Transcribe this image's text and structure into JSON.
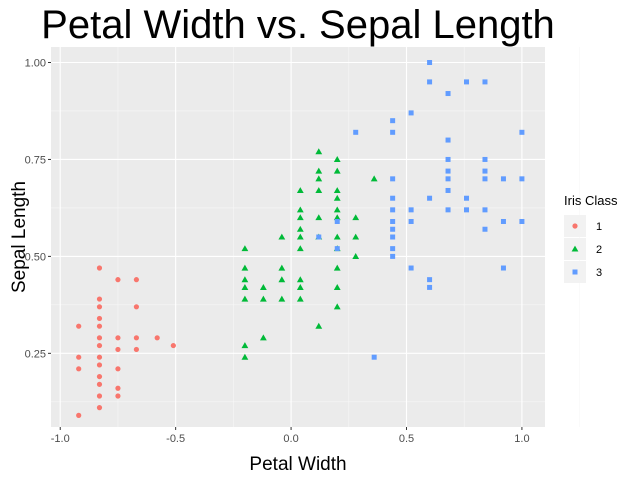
{
  "chart_data": {
    "type": "scatter",
    "title": "Petal Width  vs.  Sepal Length",
    "xlabel": "Petal Width",
    "ylabel": "Sepal Length",
    "xlim": [
      -1.04,
      1.1
    ],
    "ylim": [
      0.06,
      1.04
    ],
    "x_ticks": [
      -1.0,
      -0.5,
      0.0,
      0.5,
      1.0
    ],
    "x_tick_labels": [
      "-1.0",
      "-0.5",
      "0.0",
      "0.5",
      "1.0"
    ],
    "y_ticks": [
      0.25,
      0.5,
      0.75,
      1.0
    ],
    "y_tick_labels": [
      "0.25",
      "0.50",
      "0.75",
      "1.00"
    ],
    "grid": true,
    "panel_background": "#ebebeb",
    "legend": {
      "title": "Iris Class",
      "position": "right"
    },
    "series": [
      {
        "name": "1",
        "color": "#f8766d",
        "shape": "circle",
        "points": [
          [
            -0.92,
            0.09
          ],
          [
            -0.92,
            0.21
          ],
          [
            -0.92,
            0.24
          ],
          [
            -0.92,
            0.32
          ],
          [
            -0.83,
            0.11
          ],
          [
            -0.83,
            0.14
          ],
          [
            -0.83,
            0.17
          ],
          [
            -0.83,
            0.19
          ],
          [
            -0.83,
            0.22
          ],
          [
            -0.83,
            0.24
          ],
          [
            -0.83,
            0.27
          ],
          [
            -0.83,
            0.29
          ],
          [
            -0.83,
            0.32
          ],
          [
            -0.83,
            0.34
          ],
          [
            -0.83,
            0.37
          ],
          [
            -0.83,
            0.39
          ],
          [
            -0.83,
            0.47
          ],
          [
            -0.75,
            0.14
          ],
          [
            -0.75,
            0.16
          ],
          [
            -0.75,
            0.21
          ],
          [
            -0.75,
            0.26
          ],
          [
            -0.75,
            0.29
          ],
          [
            -0.75,
            0.44
          ],
          [
            -0.67,
            0.26
          ],
          [
            -0.67,
            0.29
          ],
          [
            -0.67,
            0.37
          ],
          [
            -0.67,
            0.44
          ],
          [
            -0.58,
            0.29
          ],
          [
            -0.51,
            0.27
          ]
        ]
      },
      {
        "name": "2",
        "color": "#00ba38",
        "shape": "triangle",
        "points": [
          [
            -0.2,
            0.24
          ],
          [
            -0.2,
            0.27
          ],
          [
            -0.2,
            0.39
          ],
          [
            -0.2,
            0.42
          ],
          [
            -0.2,
            0.44
          ],
          [
            -0.2,
            0.47
          ],
          [
            -0.2,
            0.52
          ],
          [
            -0.12,
            0.29
          ],
          [
            -0.12,
            0.39
          ],
          [
            -0.12,
            0.42
          ],
          [
            -0.04,
            0.39
          ],
          [
            -0.04,
            0.44
          ],
          [
            -0.04,
            0.47
          ],
          [
            -0.04,
            0.55
          ],
          [
            0.04,
            0.39
          ],
          [
            0.04,
            0.42
          ],
          [
            0.04,
            0.44
          ],
          [
            0.04,
            0.52
          ],
          [
            0.04,
            0.55
          ],
          [
            0.04,
            0.57
          ],
          [
            0.04,
            0.6
          ],
          [
            0.04,
            0.62
          ],
          [
            0.04,
            0.67
          ],
          [
            0.12,
            0.32
          ],
          [
            0.12,
            0.55
          ],
          [
            0.12,
            0.6
          ],
          [
            0.12,
            0.67
          ],
          [
            0.12,
            0.7
          ],
          [
            0.12,
            0.72
          ],
          [
            0.12,
            0.77
          ],
          [
            0.2,
            0.37
          ],
          [
            0.2,
            0.42
          ],
          [
            0.2,
            0.47
          ],
          [
            0.2,
            0.52
          ],
          [
            0.2,
            0.55
          ],
          [
            0.2,
            0.6
          ],
          [
            0.2,
            0.62
          ],
          [
            0.2,
            0.65
          ],
          [
            0.2,
            0.67
          ],
          [
            0.2,
            0.72
          ],
          [
            0.2,
            0.75
          ],
          [
            0.28,
            0.5
          ],
          [
            0.28,
            0.55
          ],
          [
            0.28,
            0.6
          ],
          [
            0.36,
            0.7
          ]
        ]
      },
      {
        "name": "3",
        "color": "#619cff",
        "shape": "square",
        "points": [
          [
            0.12,
            0.55
          ],
          [
            0.2,
            0.52
          ],
          [
            0.2,
            0.59
          ],
          [
            0.28,
            0.82
          ],
          [
            0.36,
            0.24
          ],
          [
            0.44,
            0.5
          ],
          [
            0.44,
            0.52
          ],
          [
            0.44,
            0.55
          ],
          [
            0.44,
            0.57
          ],
          [
            0.44,
            0.59
          ],
          [
            0.44,
            0.62
          ],
          [
            0.44,
            0.65
          ],
          [
            0.44,
            0.7
          ],
          [
            0.44,
            0.82
          ],
          [
            0.44,
            0.85
          ],
          [
            0.52,
            0.47
          ],
          [
            0.52,
            0.59
          ],
          [
            0.52,
            0.62
          ],
          [
            0.52,
            0.87
          ],
          [
            0.6,
            0.42
          ],
          [
            0.6,
            0.44
          ],
          [
            0.6,
            0.65
          ],
          [
            0.6,
            0.95
          ],
          [
            0.6,
            1.0
          ],
          [
            0.68,
            0.62
          ],
          [
            0.68,
            0.67
          ],
          [
            0.68,
            0.7
          ],
          [
            0.68,
            0.72
          ],
          [
            0.68,
            0.75
          ],
          [
            0.68,
            0.8
          ],
          [
            0.68,
            0.92
          ],
          [
            0.76,
            0.62
          ],
          [
            0.76,
            0.65
          ],
          [
            0.76,
            0.95
          ],
          [
            0.84,
            0.57
          ],
          [
            0.84,
            0.62
          ],
          [
            0.84,
            0.7
          ],
          [
            0.84,
            0.72
          ],
          [
            0.84,
            0.75
          ],
          [
            0.84,
            0.95
          ],
          [
            0.92,
            0.47
          ],
          [
            0.92,
            0.59
          ],
          [
            0.92,
            0.7
          ],
          [
            1.0,
            0.59
          ],
          [
            1.0,
            0.7
          ],
          [
            1.0,
            0.82
          ]
        ]
      }
    ]
  }
}
